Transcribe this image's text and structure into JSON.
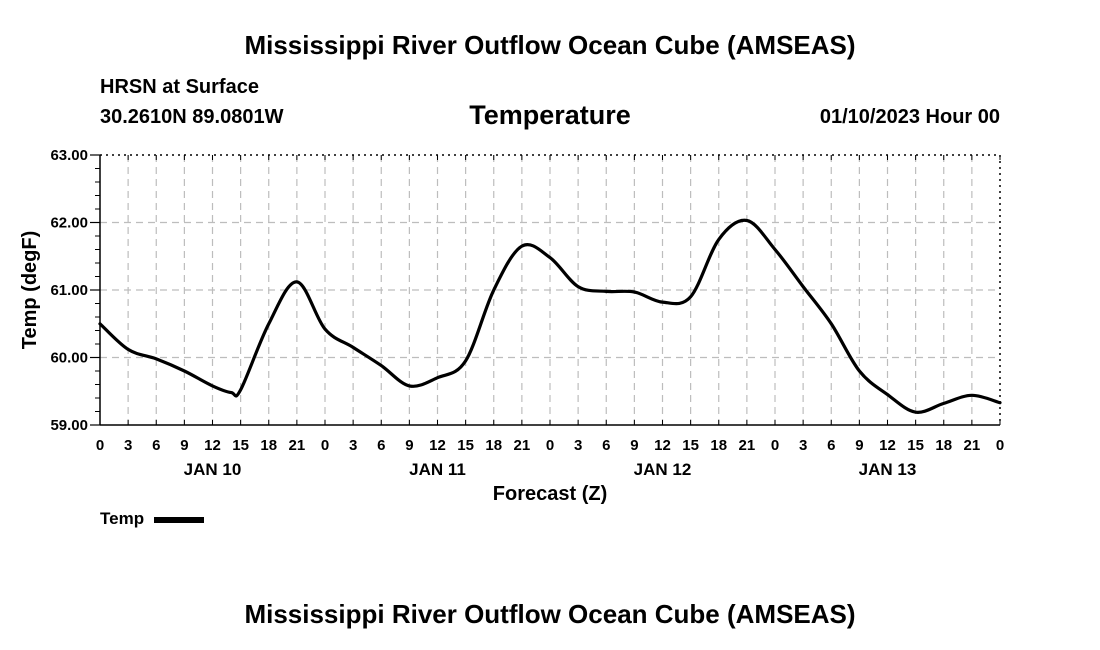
{
  "header": {
    "title": "Mississippi River Outflow Ocean Cube (AMSEAS)",
    "location": "HRSN at Surface",
    "coords": "30.2610N  89.0801W",
    "datetime": "01/10/2023 Hour 00"
  },
  "footer": {
    "title": "Mississippi River Outflow Ocean Cube (AMSEAS)"
  },
  "chart_data": {
    "type": "line",
    "title": "Temperature",
    "xlabel": "Forecast (Z)",
    "ylabel": "Temp (degF)",
    "ylim": [
      59.0,
      63.0
    ],
    "xlim": [
      0,
      96
    ],
    "grid": true,
    "yticks": [
      "59.00",
      "60.00",
      "61.00",
      "62.00",
      "63.00"
    ],
    "ytick_values": [
      59,
      60,
      61,
      62,
      63
    ],
    "xtick_labels": [
      "0",
      "3",
      "6",
      "9",
      "12",
      "15",
      "18",
      "21",
      "0",
      "3",
      "6",
      "9",
      "12",
      "15",
      "18",
      "21",
      "0",
      "3",
      "6",
      "9",
      "12",
      "15",
      "18",
      "21",
      "0",
      "3",
      "6",
      "9",
      "12",
      "15",
      "18",
      "21",
      "0"
    ],
    "day_labels": [
      "JAN 10",
      "JAN 11",
      "JAN 12",
      "JAN 13"
    ],
    "day_label_hours": [
      12,
      36,
      60,
      84
    ],
    "legend_location": "bottom-left",
    "series": [
      {
        "name": "Temp",
        "color": "#000000",
        "x": [
          0,
          3,
          6,
          9,
          12,
          14,
          15,
          18,
          21,
          24,
          27,
          30,
          33,
          36,
          39,
          42,
          45,
          48,
          51,
          54,
          57,
          60,
          63,
          66,
          69,
          72,
          75,
          78,
          81,
          84,
          87,
          90,
          93,
          96
        ],
        "y": [
          60.5,
          60.12,
          59.98,
          59.8,
          59.58,
          59.48,
          59.52,
          60.5,
          61.12,
          60.42,
          60.15,
          59.88,
          59.58,
          59.7,
          59.95,
          61.0,
          61.65,
          61.48,
          61.05,
          60.98,
          60.97,
          60.82,
          60.9,
          61.75,
          62.03,
          61.6,
          61.05,
          60.5,
          59.8,
          59.45,
          59.19,
          59.32,
          59.44,
          59.33
        ]
      }
    ]
  }
}
